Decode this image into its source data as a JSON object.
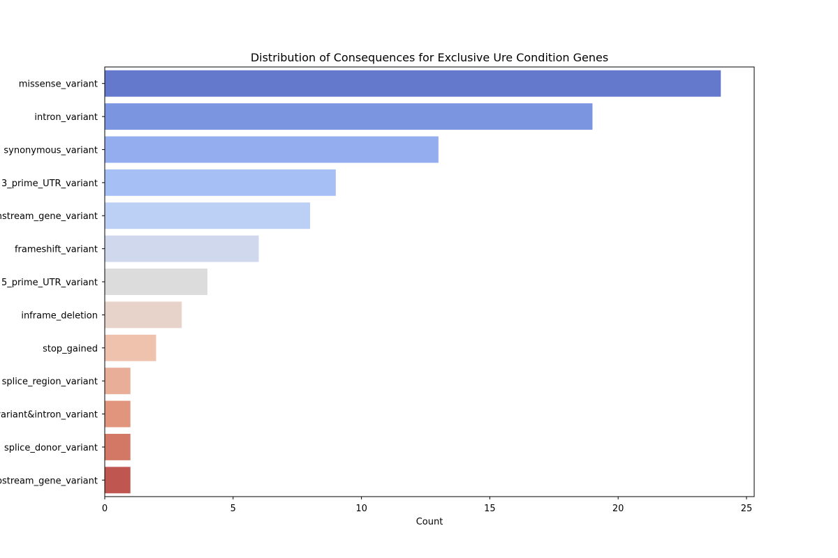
{
  "chart_data": {
    "type": "bar",
    "orientation": "horizontal",
    "title": "Distribution of Consequences for Exclusive Ure Condition Genes",
    "xlabel": "Count",
    "ylabel": "",
    "xlim": [
      0,
      25.3
    ],
    "xticks": [
      0,
      5,
      10,
      15,
      20,
      25
    ],
    "grid": false,
    "categories": [
      "missense_variant",
      "intron_variant",
      "synonymous_variant",
      "3_prime_UTR_variant",
      "downstream_gene_variant",
      "frameshift_variant",
      "5_prime_UTR_variant",
      "inframe_deletion",
      "stop_gained",
      "splice_region_variant",
      "splice_region_variant&intron_variant",
      "splice_donor_variant",
      "upstream_gene_variant"
    ],
    "values": [
      24,
      19,
      13,
      9,
      8,
      6,
      4,
      3,
      2,
      1,
      1,
      1,
      1
    ],
    "colors": [
      "#6479cc",
      "#7b95e0",
      "#93adee",
      "#a6c0f5",
      "#bccff4",
      "#cfd8ec",
      "#dcdcdc",
      "#e8d3ca",
      "#efc2ae",
      "#e9ae98",
      "#e1957d",
      "#d37865",
      "#bf5750"
    ]
  }
}
